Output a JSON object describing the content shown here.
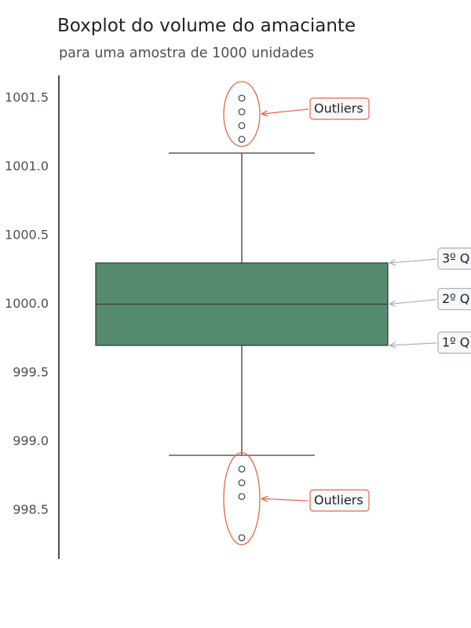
{
  "chart_data": {
    "type": "boxplot",
    "title": "Boxplot do volume do amaciante",
    "subtitle": "para uma amostra de 1000 unidades",
    "ylim": [
      998.15,
      1001.67
    ],
    "yticks": [
      998.5,
      999.0,
      999.5,
      1000.0,
      1000.5,
      1001.0,
      1001.5
    ],
    "ytick_labels": [
      "998.5",
      "999.0",
      "999.5",
      "1000.0",
      "1000.5",
      "1001.0",
      "1001.5"
    ],
    "grid": false,
    "box": {
      "whisker_low": 998.9,
      "q1": 999.7,
      "median": 1000.0,
      "q3": 1000.3,
      "whisker_high": 1001.1,
      "color": "#558b6e"
    },
    "outliers": [
      1001.5,
      1001.4,
      1001.3,
      1001.2,
      998.8,
      998.7,
      998.6,
      998.3
    ],
    "annotations": {
      "outliers_label": "Outliers",
      "q3_label": "3º Q",
      "q2_label": "2º Q",
      "q1_label": "1º Q"
    },
    "colors": {
      "outlier_accent": "#e0694a",
      "quartile_accent": "#a9b2bf",
      "axis": "#222222"
    }
  }
}
